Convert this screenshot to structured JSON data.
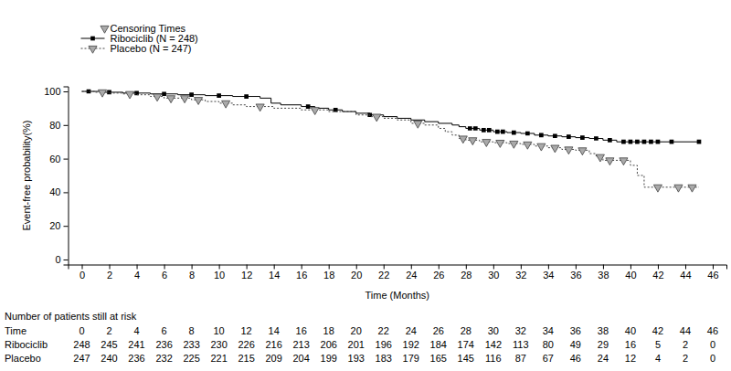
{
  "chart_data": {
    "type": "line",
    "x_label": "Time (Months)",
    "y_label": "Event-free probability(%)",
    "xlim": [
      -1,
      47
    ],
    "xticks": [
      0,
      2,
      4,
      6,
      8,
      10,
      12,
      14,
      16,
      18,
      20,
      22,
      24,
      26,
      28,
      30,
      32,
      34,
      36,
      38,
      40,
      42,
      44,
      46
    ],
    "ylim": [
      -3,
      103
    ],
    "yticks": [
      0,
      20,
      40,
      60,
      80,
      100
    ],
    "grid": false,
    "legend": "upper left",
    "censor_legend": "Censoring Times",
    "series": [
      {
        "name": "Ribociclib (N = 248)",
        "color": "#000000",
        "line_style": "solid",
        "marker": "square",
        "x": [
          0,
          1.5,
          3,
          5,
          7,
          9,
          11,
          13,
          13.8,
          14.5,
          16,
          17,
          18,
          19,
          20,
          21,
          22,
          23,
          24,
          25,
          26,
          27,
          27.5,
          28,
          29,
          30,
          31,
          32,
          33,
          34,
          35,
          36,
          37,
          38,
          39,
          45
        ],
        "values": [
          100,
          99.5,
          99,
          98.5,
          98,
          97.5,
          97,
          96,
          93,
          92,
          91,
          90,
          89,
          88,
          87,
          86,
          85,
          84,
          83,
          82,
          81,
          80,
          79,
          78,
          77,
          76,
          75.5,
          75,
          74,
          73.5,
          73,
          72.5,
          72,
          71,
          70,
          70
        ],
        "censor_x": [
          0.5,
          2,
          4,
          6,
          8,
          10,
          12,
          16.5,
          18.5,
          21,
          28.3,
          28.7,
          29.3,
          29.7,
          30.3,
          30.7,
          31.5,
          32.5,
          33.5,
          34.5,
          35.5,
          36.5,
          37.5,
          38.5,
          39.5,
          40,
          40.5,
          41,
          41.5,
          42,
          43,
          45
        ],
        "censor_values": [
          100,
          99.5,
          99,
          98.5,
          98,
          97.5,
          97,
          91,
          89,
          86,
          78,
          78,
          77,
          77,
          76,
          76,
          75.5,
          75,
          74,
          73.5,
          73,
          72.5,
          72,
          71,
          70,
          70,
          70,
          70,
          70,
          70,
          70,
          70
        ]
      },
      {
        "name": "Placebo (N = 247)",
        "color": "#444444",
        "line_style": "dotted",
        "marker": "triangle",
        "x": [
          0,
          1,
          2,
          3,
          4,
          5,
          6,
          8,
          9,
          10,
          11,
          12,
          14,
          16,
          18,
          20,
          21,
          22,
          23,
          24,
          25,
          26,
          26.5,
          27,
          27.5,
          28,
          29,
          30,
          31,
          32,
          33,
          34,
          35,
          36,
          37,
          37.5,
          38,
          40,
          40.5,
          41,
          45
        ],
        "values": [
          100,
          99.5,
          99,
          98.5,
          98,
          97,
          96,
          95,
          94,
          93,
          92,
          91,
          90,
          89,
          88,
          86,
          85,
          84,
          83,
          81,
          80,
          78,
          76,
          74,
          72,
          71,
          70,
          69.5,
          69,
          68.5,
          67.5,
          66.5,
          65.5,
          65,
          63,
          61,
          59,
          56,
          50,
          43,
          43
        ],
        "censor_x": [
          1.5,
          3.5,
          5.5,
          6.5,
          7.5,
          8.5,
          10.5,
          13,
          17,
          21.5,
          24.5,
          27.8,
          28.5,
          29.5,
          30.5,
          31.5,
          32.5,
          33.5,
          34.5,
          35.5,
          36.5,
          37.8,
          38.5,
          39.5,
          42,
          43.5,
          44.5
        ],
        "censor_values": [
          99.5,
          98.5,
          97,
          96,
          96,
          95,
          93,
          91,
          89,
          85,
          81,
          72,
          71,
          70,
          69.5,
          69,
          68.5,
          67.5,
          66.5,
          65.5,
          65,
          61,
          59,
          59,
          43,
          43,
          43
        ]
      }
    ],
    "at_risk": {
      "title": "Number of patients still at risk",
      "time_label": "Time",
      "time": [
        0,
        2,
        4,
        6,
        8,
        10,
        12,
        14,
        16,
        18,
        20,
        22,
        24,
        26,
        28,
        30,
        32,
        34,
        36,
        38,
        40,
        42,
        44,
        46
      ],
      "rows": [
        {
          "name": "Ribociclib",
          "values": [
            248,
            245,
            241,
            236,
            233,
            230,
            226,
            216,
            213,
            206,
            201,
            196,
            192,
            184,
            174,
            142,
            113,
            80,
            49,
            29,
            16,
            5,
            2,
            0
          ]
        },
        {
          "name": "Placebo",
          "values": [
            247,
            240,
            236,
            232,
            225,
            221,
            215,
            209,
            204,
            199,
            193,
            183,
            179,
            165,
            145,
            116,
            87,
            67,
            46,
            24,
            12,
            4,
            2,
            0
          ]
        }
      ]
    }
  }
}
